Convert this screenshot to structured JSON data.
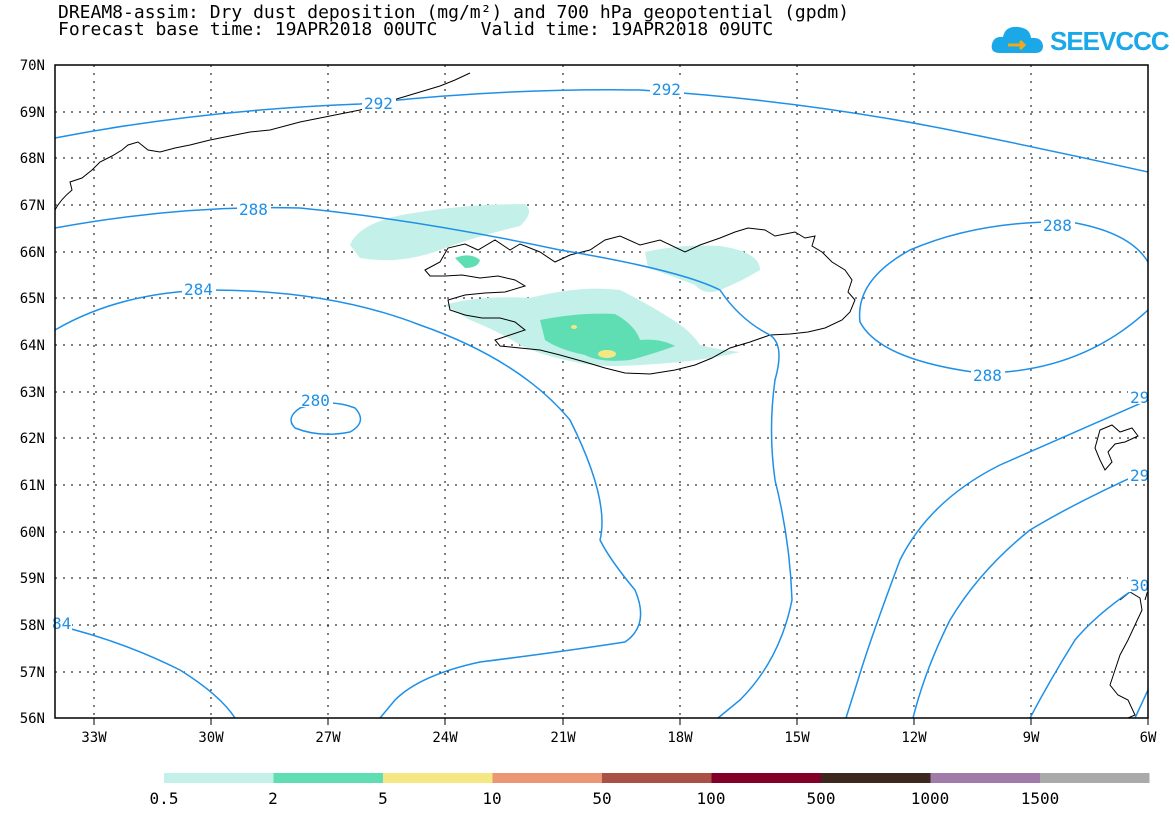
{
  "header": {
    "title_line1": "DREAM8-assim: Dry dust deposition (mg/m²) and 700 hPa geopotential (gpdm)",
    "title_line2": "Forecast base time: 19APR2018 00UTC    Valid time: 19APR2018 09UTC"
  },
  "logo": {
    "text": "SEEVCCC",
    "icon": "cloud-icon"
  },
  "map": {
    "lat_labels": [
      "70N",
      "69N",
      "68N",
      "67N",
      "66N",
      "65N",
      "64N",
      "63N",
      "62N",
      "61N",
      "60N",
      "59N",
      "58N",
      "57N",
      "56N"
    ],
    "lon_labels": [
      "33W",
      "30W",
      "27W",
      "24W",
      "21W",
      "18W",
      "15W",
      "12W",
      "9W",
      "6W"
    ],
    "contour_labels": {
      "c292a": "292",
      "c292b": "292",
      "c288a": "288",
      "c288b": "288",
      "c288c": "288",
      "c284a": "284",
      "c284b": "84",
      "c280": "280",
      "c29a": "29",
      "c29b": "29",
      "c30": "30"
    },
    "colors": {
      "contour": "#1e90e8",
      "coast": "#000000",
      "dust_0_5": "#c3f0e8",
      "dust_2": "#5fdeb4",
      "dust_5": "#f5e883"
    }
  },
  "legend": {
    "bins": [
      {
        "color": "#c3f0e8"
      },
      {
        "color": "#5fdeb4"
      },
      {
        "color": "#f5e883"
      },
      {
        "color": "#ec9676"
      },
      {
        "color": "#aa5046"
      },
      {
        "color": "#820028"
      },
      {
        "color": "#3c281e"
      },
      {
        "color": "#a07aa8"
      },
      {
        "color": "#aaaaaa"
      }
    ],
    "tick_labels": [
      "0.5",
      "2",
      "5",
      "10",
      "50",
      "100",
      "500",
      "1000",
      "1500"
    ]
  }
}
